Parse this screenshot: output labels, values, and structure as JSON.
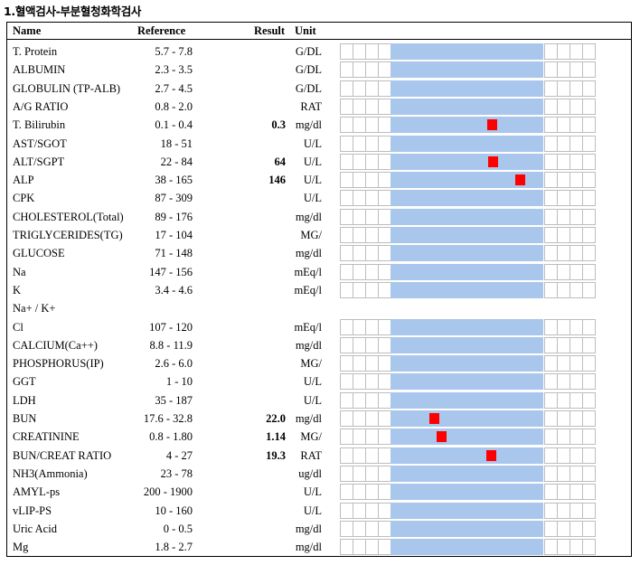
{
  "title": "1.혈액검사-부분혈청화학검사",
  "headers": {
    "name": "Name",
    "reference": "Reference",
    "result": "Result",
    "unit": "Unit"
  },
  "rows": [
    {
      "name": "T. Protein",
      "ref": "5.7 - 7.8",
      "result": "",
      "unit": "G/DL",
      "bar": true,
      "marker": null
    },
    {
      "name": "ALBUMIN",
      "ref": "2.3 - 3.5",
      "result": "",
      "unit": "G/DL",
      "bar": true,
      "marker": null
    },
    {
      "name": "GLOBULIN (TP-ALB)",
      "ref": "2.7 - 4.5",
      "result": "",
      "unit": "G/DL",
      "bar": true,
      "marker": null
    },
    {
      "name": "A/G RATIO",
      "ref": "0.8 - 2.0",
      "result": "",
      "unit": "RAT",
      "bar": true,
      "marker": null
    },
    {
      "name": "T. Bilirubin",
      "ref": "0.1 - 0.4",
      "result": "0.3",
      "unit": "mg/dl",
      "bar": true,
      "marker": 0.3
    },
    {
      "name": "AST/SGOT",
      "ref": "18 - 51",
      "result": "",
      "unit": "U/L",
      "bar": true,
      "marker": null
    },
    {
      "name": "ALT/SGPT",
      "ref": "22 - 84",
      "result": "64",
      "unit": "U/L",
      "bar": true,
      "marker": 64
    },
    {
      "name": "ALP",
      "ref": "38 - 165",
      "result": "146",
      "unit": "U/L",
      "bar": true,
      "marker": 146
    },
    {
      "name": "CPK",
      "ref": "87 - 309",
      "result": "",
      "unit": "U/L",
      "bar": true,
      "marker": null
    },
    {
      "name": "CHOLESTEROL(Total)",
      "ref": "89 - 176",
      "result": "",
      "unit": "mg/dl",
      "bar": true,
      "marker": null
    },
    {
      "name": "TRIGLYCERIDES(TG)",
      "ref": "17 - 104",
      "result": "",
      "unit": "MG/",
      "bar": true,
      "marker": null
    },
    {
      "name": "GLUCOSE",
      "ref": "71 - 148",
      "result": "",
      "unit": "mg/dl",
      "bar": true,
      "marker": null
    },
    {
      "name": "Na",
      "ref": "147 - 156",
      "result": "",
      "unit": "mEq/l",
      "bar": true,
      "marker": null
    },
    {
      "name": "K",
      "ref": "3.4 - 4.6",
      "result": "",
      "unit": "mEq/l",
      "bar": true,
      "marker": null
    },
    {
      "name": "Na+ / K+",
      "ref": "",
      "result": "",
      "unit": "",
      "bar": false,
      "marker": null
    },
    {
      "name": "Cl",
      "ref": "107 - 120",
      "result": "",
      "unit": "mEq/l",
      "bar": true,
      "marker": null
    },
    {
      "name": "CALCIUM(Ca++)",
      "ref": "8.8 - 11.9",
      "result": "",
      "unit": "mg/dl",
      "bar": true,
      "marker": null
    },
    {
      "name": "PHOSPHORUS(IP)",
      "ref": "2.6 - 6.0",
      "result": "",
      "unit": "MG/",
      "bar": true,
      "marker": null
    },
    {
      "name": "GGT",
      "ref": "1 - 10",
      "result": "",
      "unit": "U/L",
      "bar": true,
      "marker": null
    },
    {
      "name": "LDH",
      "ref": "35 - 187",
      "result": "",
      "unit": "U/L",
      "bar": true,
      "marker": null
    },
    {
      "name": "BUN",
      "ref": "17.6 - 32.8",
      "result": "22.0",
      "unit": "mg/dl",
      "bar": true,
      "marker": 22.0
    },
    {
      "name": "CREATININE",
      "ref": "0.8 - 1.80",
      "result": "1.14",
      "unit": "MG/",
      "bar": true,
      "marker": 1.14
    },
    {
      "name": "BUN/CREAT RATIO",
      "ref": "4 - 27",
      "result": "19.3",
      "unit": "RAT",
      "bar": true,
      "marker": 19.3
    },
    {
      "name": "NH3(Ammonia)",
      "ref": "23 - 78",
      "result": "",
      "unit": "ug/dl",
      "bar": true,
      "marker": null
    },
    {
      "name": "AMYL-ps",
      "ref": "200 - 1900",
      "result": "",
      "unit": "U/L",
      "bar": true,
      "marker": null
    },
    {
      "name": "vLIP-PS",
      "ref": "10 - 160",
      "result": "",
      "unit": "U/L",
      "bar": true,
      "marker": null
    },
    {
      "name": "Uric Acid",
      "ref": "0 - 0.5",
      "result": "",
      "unit": "mg/dl",
      "bar": true,
      "marker": null
    },
    {
      "name": "Mg",
      "ref": "1.8 - 2.7",
      "result": "",
      "unit": "mg/dl",
      "bar": true,
      "marker": null
    }
  ],
  "colors": {
    "normal_band": "#a9c6ec",
    "marker": "#ff0000",
    "cell_border": "#bdbdbd"
  }
}
